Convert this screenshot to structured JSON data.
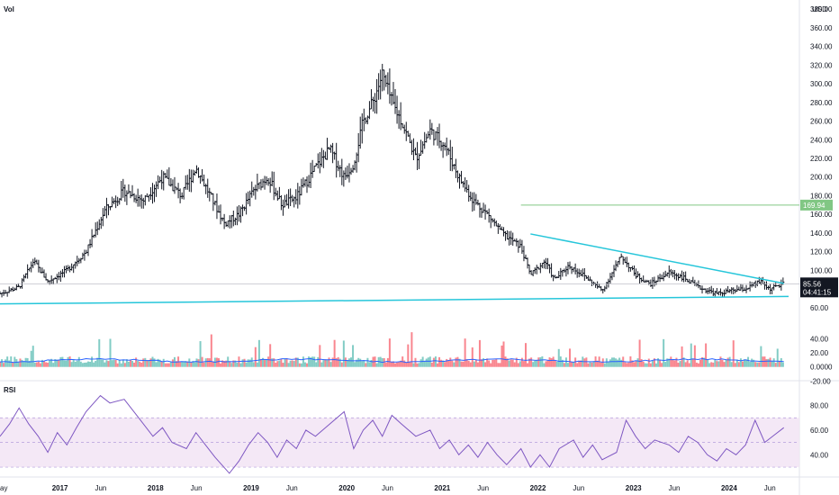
{
  "header": {
    "volume_label": "Vol",
    "currency": "USD"
  },
  "rsi_label": "RSI",
  "chart_data": [
    {
      "type": "ohlc",
      "name": "price",
      "ylim": [
        55,
        385
      ],
      "y_ticks": [
        "380.00",
        "360.00",
        "340.00",
        "320.00",
        "300.00",
        "280.00",
        "260.00",
        "240.00",
        "220.00",
        "200.00",
        "180.00",
        "160.00",
        "140.00",
        "120.00",
        "100.00",
        "80.00",
        "60.00"
      ],
      "x_ticks": [
        "ay",
        "2017",
        "Jun",
        "2018",
        "Jun",
        "2019",
        "Jun",
        "2020",
        "Jun",
        "2021",
        "Jun",
        "2022",
        "Jun",
        "2023",
        "Jun",
        "2024",
        "Jun"
      ],
      "x_tick_dates": [
        2016.4,
        2017.0,
        2017.45,
        2018.0,
        2018.45,
        2019.0,
        2019.45,
        2020.0,
        2020.45,
        2021.0,
        2021.45,
        2022.0,
        2022.45,
        2023.0,
        2023.45,
        2024.0,
        2024.45
      ],
      "close_path": [
        [
          2016.4,
          75
        ],
        [
          2016.6,
          82
        ],
        [
          2016.75,
          110
        ],
        [
          2016.9,
          88
        ],
        [
          2017.1,
          100
        ],
        [
          2017.3,
          120
        ],
        [
          2017.5,
          165
        ],
        [
          2017.7,
          185
        ],
        [
          2017.9,
          175
        ],
        [
          2018.1,
          200
        ],
        [
          2018.3,
          180
        ],
        [
          2018.45,
          210
        ],
        [
          2018.6,
          180
        ],
        [
          2018.75,
          150
        ],
        [
          2018.9,
          160
        ],
        [
          2019.05,
          185
        ],
        [
          2019.2,
          200
        ],
        [
          2019.35,
          170
        ],
        [
          2019.5,
          178
        ],
        [
          2019.7,
          210
        ],
        [
          2019.85,
          230
        ],
        [
          2020.0,
          200
        ],
        [
          2020.1,
          215
        ],
        [
          2020.2,
          260
        ],
        [
          2020.3,
          280
        ],
        [
          2020.4,
          310
        ],
        [
          2020.5,
          280
        ],
        [
          2020.6,
          260
        ],
        [
          2020.75,
          220
        ],
        [
          2020.9,
          250
        ],
        [
          2021.05,
          235
        ],
        [
          2021.2,
          200
        ],
        [
          2021.35,
          175
        ],
        [
          2021.5,
          160
        ],
        [
          2021.65,
          140
        ],
        [
          2021.85,
          125
        ],
        [
          2021.95,
          95
        ],
        [
          2022.1,
          110
        ],
        [
          2022.2,
          90
        ],
        [
          2022.35,
          105
        ],
        [
          2022.5,
          95
        ],
        [
          2022.7,
          78
        ],
        [
          2022.9,
          115
        ],
        [
          2023.05,
          95
        ],
        [
          2023.2,
          85
        ],
        [
          2023.4,
          98
        ],
        [
          2023.55,
          92
        ],
        [
          2023.7,
          82
        ],
        [
          2023.9,
          75
        ],
        [
          2024.05,
          78
        ],
        [
          2024.2,
          80
        ],
        [
          2024.35,
          88
        ],
        [
          2024.45,
          80
        ],
        [
          2024.6,
          85.56
        ]
      ],
      "ohlc_range_pct": 0.06,
      "last_price": "85.56",
      "countdown": "04:41:15",
      "level_label": "169.94",
      "horizontal_level": 169.94,
      "level_start": 2021.85,
      "trendlines": [
        {
          "name": "support",
          "points": [
            [
              2016.4,
              64
            ],
            [
              2024.65,
              72
            ]
          ]
        },
        {
          "name": "resistance",
          "points": [
            [
              2021.95,
              139
            ],
            [
              2024.6,
              86
            ]
          ]
        }
      ]
    },
    {
      "type": "bar",
      "name": "volume",
      "ylim": [
        -22,
        48
      ],
      "y_ticks": [
        "40.00",
        "20.00",
        "0.0000",
        "-20.00"
      ],
      "up_color": "#4db6ac",
      "down_color": "#f7525f",
      "ma_color": "#2962ff"
    },
    {
      "type": "line",
      "name": "RSI",
      "ylim": [
        22,
        95
      ],
      "y_ticks": [
        "80.00",
        "60.00",
        "40.00"
      ],
      "band": [
        30,
        70
      ],
      "points": [
        [
          2016.4,
          55
        ],
        [
          2016.5,
          65
        ],
        [
          2016.6,
          78
        ],
        [
          2016.7,
          65
        ],
        [
          2016.8,
          55
        ],
        [
          2016.9,
          42
        ],
        [
          2017.0,
          58
        ],
        [
          2017.1,
          48
        ],
        [
          2017.2,
          62
        ],
        [
          2017.3,
          75
        ],
        [
          2017.45,
          88
        ],
        [
          2017.55,
          82
        ],
        [
          2017.7,
          85
        ],
        [
          2017.85,
          70
        ],
        [
          2018.0,
          55
        ],
        [
          2018.1,
          62
        ],
        [
          2018.2,
          50
        ],
        [
          2018.35,
          45
        ],
        [
          2018.45,
          58
        ],
        [
          2018.55,
          48
        ],
        [
          2018.65,
          38
        ],
        [
          2018.8,
          25
        ],
        [
          2018.9,
          35
        ],
        [
          2019.0,
          48
        ],
        [
          2019.1,
          58
        ],
        [
          2019.2,
          50
        ],
        [
          2019.3,
          38
        ],
        [
          2019.4,
          52
        ],
        [
          2019.5,
          45
        ],
        [
          2019.6,
          60
        ],
        [
          2019.7,
          55
        ],
        [
          2019.85,
          65
        ],
        [
          2020.0,
          75
        ],
        [
          2020.1,
          45
        ],
        [
          2020.2,
          60
        ],
        [
          2020.3,
          68
        ],
        [
          2020.4,
          55
        ],
        [
          2020.5,
          72
        ],
        [
          2020.6,
          65
        ],
        [
          2020.75,
          55
        ],
        [
          2020.9,
          60
        ],
        [
          2021.0,
          45
        ],
        [
          2021.1,
          52
        ],
        [
          2021.2,
          40
        ],
        [
          2021.3,
          48
        ],
        [
          2021.4,
          38
        ],
        [
          2021.5,
          50
        ],
        [
          2021.6,
          40
        ],
        [
          2021.7,
          32
        ],
        [
          2021.85,
          45
        ],
        [
          2021.95,
          30
        ],
        [
          2022.05,
          40
        ],
        [
          2022.15,
          30
        ],
        [
          2022.25,
          45
        ],
        [
          2022.4,
          52
        ],
        [
          2022.5,
          38
        ],
        [
          2022.6,
          48
        ],
        [
          2022.7,
          36
        ],
        [
          2022.85,
          42
        ],
        [
          2022.95,
          68
        ],
        [
          2023.05,
          55
        ],
        [
          2023.15,
          45
        ],
        [
          2023.25,
          52
        ],
        [
          2023.4,
          48
        ],
        [
          2023.5,
          42
        ],
        [
          2023.6,
          55
        ],
        [
          2023.7,
          50
        ],
        [
          2023.8,
          40
        ],
        [
          2023.9,
          35
        ],
        [
          2024.0,
          45
        ],
        [
          2024.1,
          40
        ],
        [
          2024.2,
          48
        ],
        [
          2024.3,
          68
        ],
        [
          2024.4,
          50
        ],
        [
          2024.5,
          56
        ],
        [
          2024.6,
          62
        ]
      ]
    }
  ]
}
